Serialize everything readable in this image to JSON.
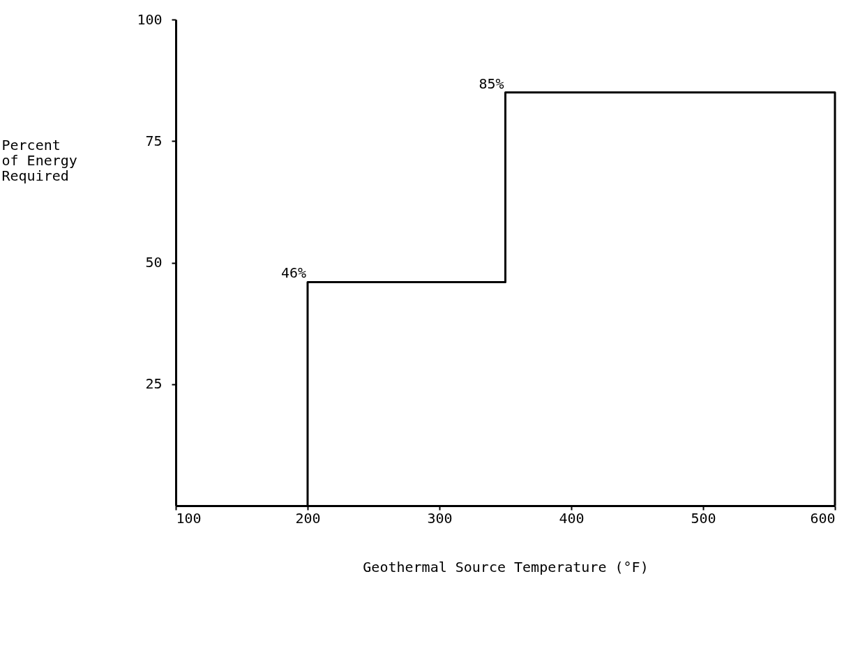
{
  "chart_data": {
    "type": "line",
    "xlabel": "Geothermal Source Temperature (°F)",
    "ylabel": "Percent\nof Energy\nRequired",
    "x": [
      200,
      200,
      350,
      350,
      600,
      600
    ],
    "series": [
      {
        "color": "#000000",
        "values": [
          0,
          46,
          46,
          85,
          85,
          0
        ]
      }
    ],
    "xlim": [
      100,
      600
    ],
    "xticks": [
      100,
      200,
      300,
      400,
      500,
      600
    ],
    "ylim": [
      0,
      100
    ],
    "yticks": [
      25,
      50,
      75,
      100
    ],
    "annotations": [
      {
        "text": "46%",
        "x": 200,
        "y": 46
      },
      {
        "text": "85%",
        "x": 350,
        "y": 85
      }
    ],
    "grid": false,
    "marker": "none",
    "line_style": "solid"
  }
}
